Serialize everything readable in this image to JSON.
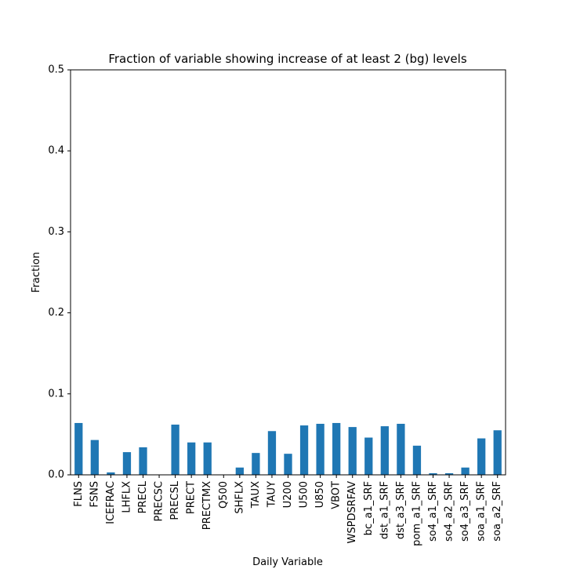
{
  "chart_data": {
    "type": "bar",
    "title": "Fraction of variable showing increase of at least 2 (bg) levels",
    "xlabel": "Daily Variable",
    "ylabel": "Fraction",
    "ylim": [
      0,
      0.5
    ],
    "yticks": [
      "0.0",
      "0.1",
      "0.2",
      "0.3",
      "0.4",
      "0.5"
    ],
    "grid": false,
    "bar_color": "#1f77b4",
    "categories": [
      "FLNS",
      "FSNS",
      "ICEFRAC",
      "LHFLX",
      "PRECL",
      "PRECSC",
      "PRECSL",
      "PRECT",
      "PRECTMX",
      "Q500",
      "SHFLX",
      "TAUX",
      "TAUY",
      "U200",
      "U500",
      "U850",
      "VBOT",
      "WSPDSRFAV",
      "bc_a1_SRF",
      "dst_a1_SRF",
      "dst_a3_SRF",
      "pom_a1_SRF",
      "so4_a1_SRF",
      "so4_a2_SRF",
      "so4_a3_SRF",
      "soa_a1_SRF",
      "soa_a2_SRF"
    ],
    "values": [
      0.064,
      0.043,
      0.003,
      0.028,
      0.034,
      0.0,
      0.062,
      0.04,
      0.04,
      0.0,
      0.009,
      0.027,
      0.054,
      0.026,
      0.061,
      0.063,
      0.064,
      0.059,
      0.046,
      0.06,
      0.063,
      0.036,
      0.002,
      0.002,
      0.009,
      0.045,
      0.055
    ]
  }
}
